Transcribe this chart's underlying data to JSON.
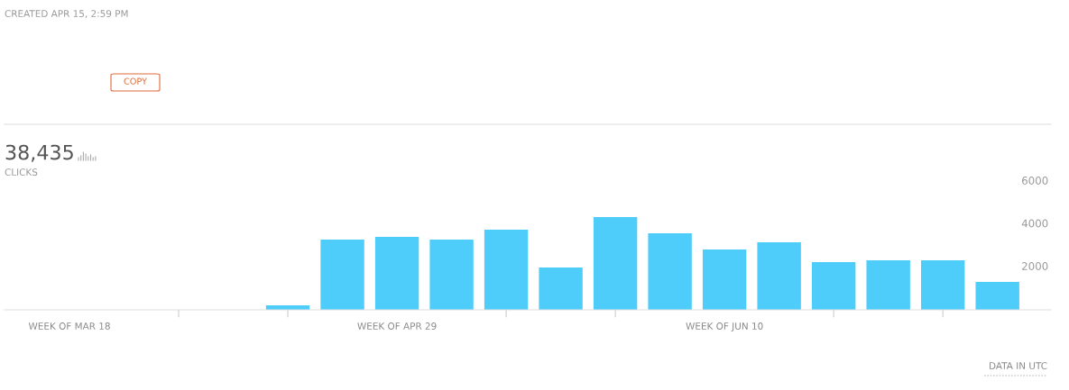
{
  "chart_data": {
    "type": "bar",
    "categories": [
      "WEEK OF MAR 18",
      null,
      null,
      null,
      null,
      null,
      "WEEK OF APR 29",
      null,
      null,
      null,
      null,
      null,
      "WEEK OF JUN 10",
      null,
      null,
      null,
      null,
      null
    ],
    "values": [
      null,
      null,
      null,
      null,
      210,
      3280,
      3410,
      3280,
      3750,
      1980,
      4340,
      3580,
      2820,
      3160,
      2230,
      2320,
      2320,
      1310
    ],
    "color": "#4ecdfb",
    "ylim": [
      0,
      6000
    ],
    "yticks": [
      2000,
      4000,
      6000
    ],
    "grid": false,
    "legend": false,
    "annotations": [
      "CREATED APR 15, 2:59 PM",
      "COPY",
      "38,435",
      "CLICKS",
      "DATA IN UTC"
    ]
  }
}
